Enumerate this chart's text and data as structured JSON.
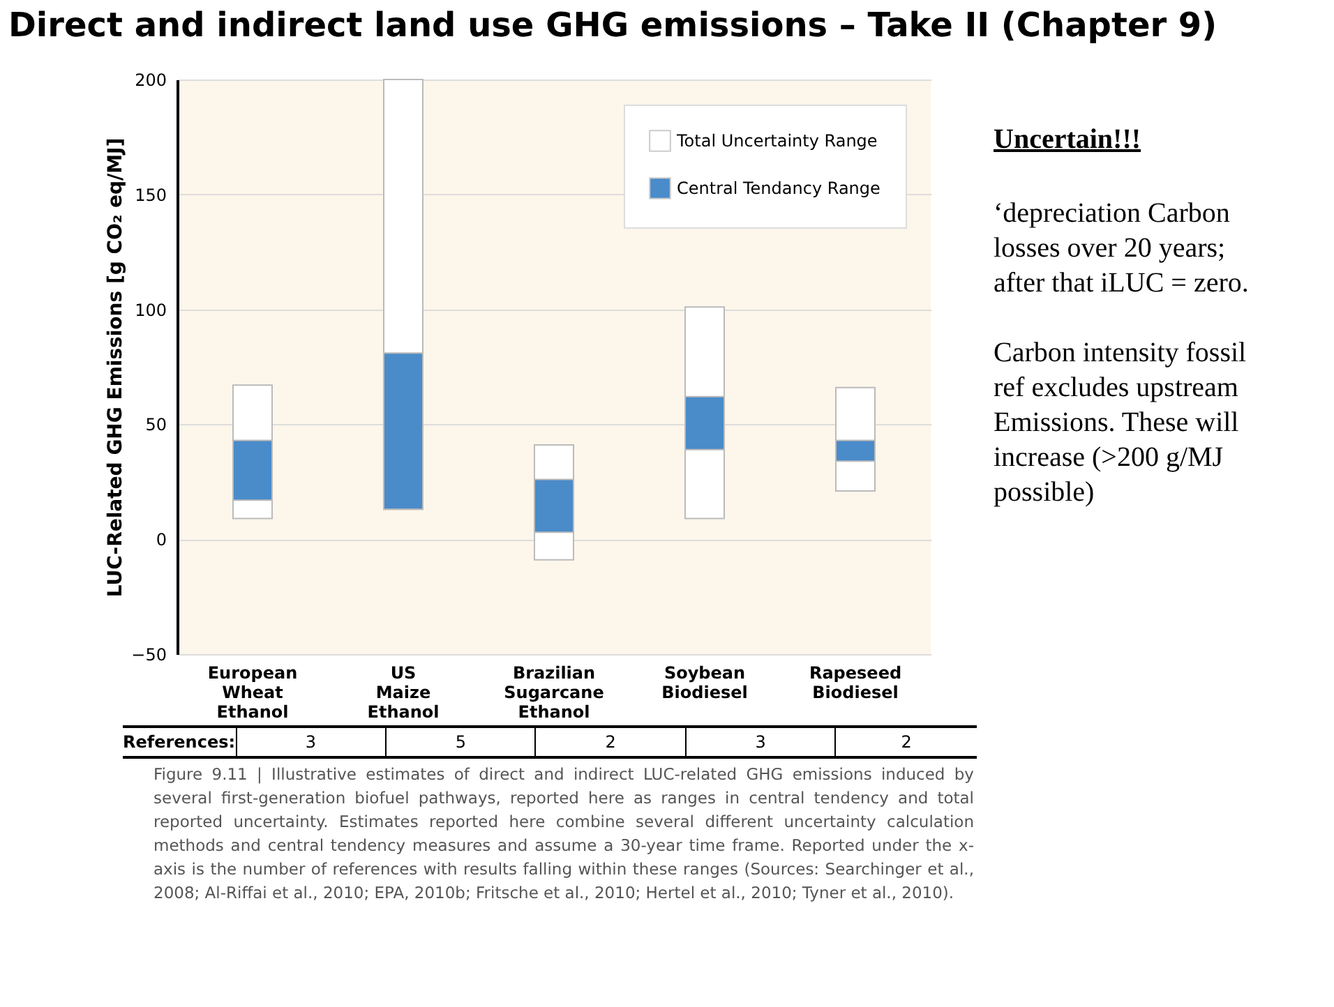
{
  "chart_data": {
    "type": "bar",
    "title": "Direct and indirect land use GHG emissions – Take II (Chapter 9)",
    "ylabel": "LUC-Related GHG Emissions [g CO₂ eq/MJ]",
    "categories": [
      "European Wheat Ethanol",
      "US Maize Ethanol",
      "Brazilian Sugarcane Ethanol",
      "Soybean Biodiesel",
      "Rapeseed Biodiesel"
    ],
    "series": [
      {
        "name": "Total Uncertainty Range",
        "color": "#ffffff",
        "base": [
          9,
          13,
          -9,
          9,
          21
        ],
        "values": [
          58,
          187,
          50,
          92,
          45
        ]
      },
      {
        "name": "Central Tendancy Range",
        "color": "#4a8bc9",
        "base": [
          17,
          13,
          3,
          39,
          34
        ],
        "values": [
          26,
          68,
          23,
          23,
          9
        ]
      }
    ],
    "ylim": [
      -50,
      200
    ],
    "yticks": [
      -50,
      0,
      50,
      100,
      150,
      200
    ],
    "grid": "y",
    "legend": "top right",
    "annotations": [
      "References:",
      "3",
      "5",
      "2",
      "3",
      "2",
      "Figure 9.11 | Illustrative estimates of direct and indirect LUC-related GHG emissions induced by several first-generation biofuel pathways, reported here as ranges in central tendency and total reported uncertainty. Estimates reported here combine several different uncertainty calculation methods and central tendency measures and assume a 30-year time frame. Reported under the x-axis is the number of references with results falling within these ranges (Sources: Searchinger et al., 2008; Al-Riffai et al., 2010; EPA, 2010b; Fritsche et al., 2010; Hertel et al., 2010; Tyner et al., 2010).",
      "Uncertain!!!",
      "‘depreciation Carbon losses over 20 years; after that iLUC = zero.",
      "Carbon intensity fossil ref excludes upstream Emissions. These will increase (>200 g/MJ possible)"
    ]
  }
}
